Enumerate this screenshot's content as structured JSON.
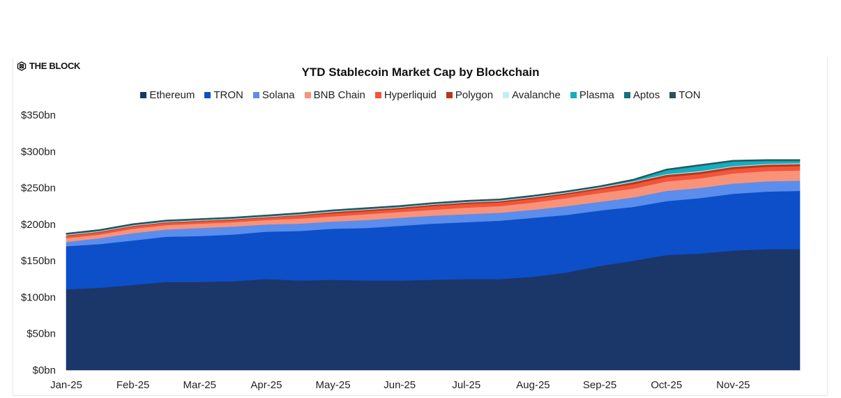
{
  "brand": {
    "logo_text": "THE BLOCK"
  },
  "chart_data": {
    "type": "area",
    "stacked": true,
    "title": "YTD Stablecoin Market Cap by Blockchain",
    "xlabel": "",
    "ylabel": "",
    "ylim": [
      0,
      350
    ],
    "y_ticks": [
      0,
      50,
      100,
      150,
      200,
      250,
      300,
      350
    ],
    "y_tick_labels": [
      "$0bn",
      "$50bn",
      "$100bn",
      "$150bn",
      "$200bn",
      "$250bn",
      "$300bn",
      "$350bn"
    ],
    "x_tick_labels": [
      "Jan-25",
      "Feb-25",
      "Mar-25",
      "Apr-25",
      "May-25",
      "Jun-25",
      "Jul-25",
      "Aug-25",
      "Sep-25",
      "Oct-25",
      "Nov-25"
    ],
    "x": [
      "2025-01-01",
      "2025-01-15",
      "2025-02-01",
      "2025-02-15",
      "2025-03-01",
      "2025-03-15",
      "2025-04-01",
      "2025-04-15",
      "2025-05-01",
      "2025-05-15",
      "2025-06-01",
      "2025-06-15",
      "2025-07-01",
      "2025-07-15",
      "2025-08-01",
      "2025-08-15",
      "2025-09-01",
      "2025-09-15",
      "2025-10-01",
      "2025-10-15",
      "2025-11-01",
      "2025-11-15",
      "2025-12-01"
    ],
    "grid": false,
    "legend_position": "top",
    "series": [
      {
        "name": "Ethereum",
        "color": "#1b3668",
        "values": [
          111,
          113,
          117,
          121,
          121,
          122,
          125,
          123,
          124,
          123,
          123,
          124,
          125,
          125,
          128,
          134,
          143,
          150,
          158,
          160,
          164,
          166,
          166
        ]
      },
      {
        "name": "TRON",
        "color": "#0d4fc9",
        "values": [
          59,
          60,
          61,
          62,
          63,
          64,
          65,
          68,
          70,
          72,
          75,
          77,
          78,
          80,
          81,
          79,
          76,
          74,
          74,
          76,
          78,
          79,
          80
        ]
      },
      {
        "name": "Solana",
        "color": "#5b8dec",
        "values": [
          6,
          8,
          10,
          10,
          11,
          11,
          10,
          10,
          10,
          11,
          11,
          11,
          11,
          11,
          11,
          12,
          12,
          13,
          14,
          14,
          14,
          14,
          14
        ]
      },
      {
        "name": "BNB Chain",
        "color": "#f8937a",
        "values": [
          5,
          5,
          6,
          6,
          6,
          6,
          6,
          7,
          7,
          8,
          8,
          8,
          9,
          9,
          10,
          11,
          12,
          12,
          13,
          13,
          14,
          14,
          14
        ]
      },
      {
        "name": "Hyperliquid",
        "color": "#f2553a",
        "values": [
          3,
          3,
          3,
          3,
          3,
          3,
          3,
          4,
          4,
          4,
          4,
          5,
          5,
          5,
          5,
          5,
          5,
          6,
          6,
          6,
          6,
          6,
          6
        ]
      },
      {
        "name": "Polygon",
        "color": "#b9361c",
        "values": [
          1,
          1,
          1,
          1,
          1,
          1,
          1,
          1,
          2,
          2,
          2,
          2,
          2,
          2,
          2,
          2,
          2,
          3,
          3,
          3,
          3,
          3,
          3
        ]
      },
      {
        "name": "Avalanche",
        "color": "#c3eef7",
        "values": [
          1,
          1,
          1,
          1,
          1,
          1,
          1,
          1,
          1,
          1,
          1,
          1,
          1,
          1,
          1,
          1,
          1,
          1,
          1,
          1,
          1,
          1,
          1
        ]
      },
      {
        "name": "Plasma",
        "color": "#16aebc",
        "values": [
          0,
          0,
          0,
          0,
          0,
          0,
          0,
          0,
          0,
          0,
          0,
          0,
          0,
          0,
          0,
          0,
          0,
          1,
          5,
          7,
          6,
          4,
          3
        ]
      },
      {
        "name": "Aptos",
        "color": "#157082",
        "values": [
          1,
          1,
          1,
          1,
          1,
          1,
          1,
          1,
          1,
          1,
          1,
          1,
          1,
          1,
          1,
          1,
          1,
          1,
          1,
          1,
          1,
          1,
          1
        ]
      },
      {
        "name": "TON",
        "color": "#2e4f55",
        "values": [
          1,
          1,
          1,
          1,
          1,
          1,
          1,
          1,
          1,
          1,
          1,
          1,
          1,
          1,
          1,
          1,
          1,
          1,
          1,
          1,
          1,
          1,
          1
        ]
      }
    ]
  }
}
